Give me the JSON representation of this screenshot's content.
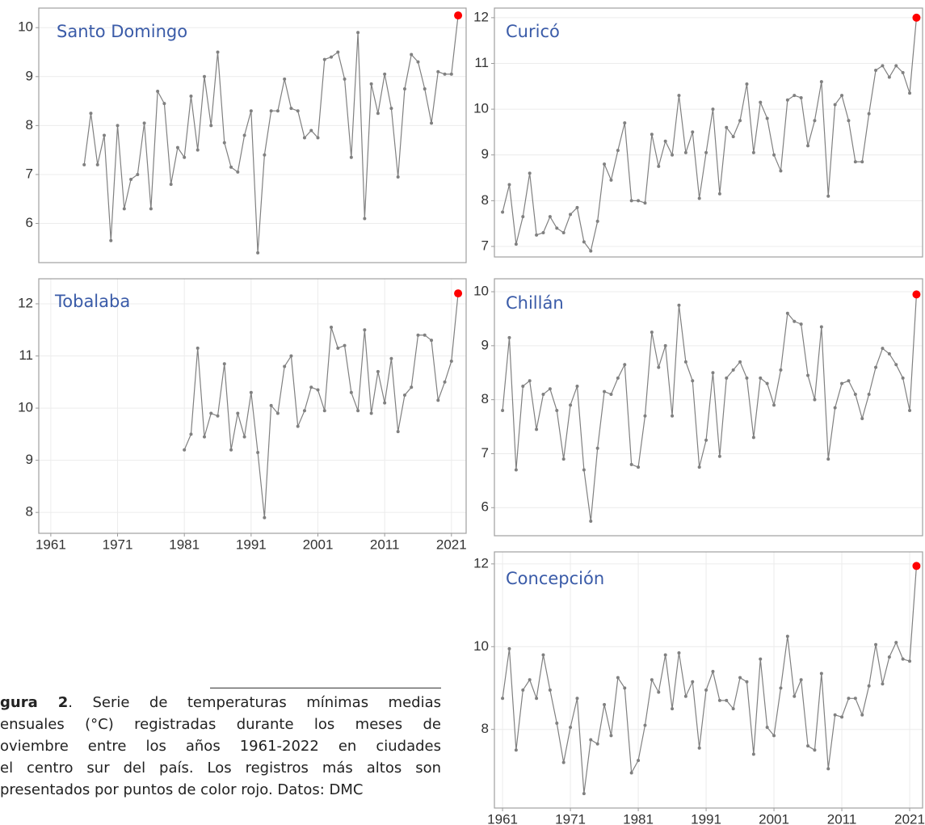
{
  "chart_data": [
    {
      "type": "line",
      "title": "Santo Domingo",
      "color": "#808080",
      "highlight_color": "#ff0000",
      "grid": true,
      "x": [
        1966,
        1967,
        1968,
        1969,
        1970,
        1971,
        1972,
        1973,
        1974,
        1975,
        1976,
        1977,
        1978,
        1979,
        1980,
        1981,
        1982,
        1983,
        1984,
        1985,
        1986,
        1987,
        1988,
        1989,
        1990,
        1991,
        1992,
        1993,
        1994,
        1995,
        1996,
        1997,
        1998,
        1999,
        2000,
        2001,
        2002,
        2003,
        2004,
        2005,
        2006,
        2007,
        2008,
        2009,
        2010,
        2011,
        2012,
        2013,
        2014,
        2015,
        2016,
        2017,
        2018,
        2019,
        2020,
        2021,
        2022
      ],
      "values": [
        7.2,
        8.25,
        7.2,
        7.8,
        5.65,
        8.0,
        6.3,
        6.9,
        7.0,
        8.05,
        6.3,
        8.7,
        8.45,
        6.8,
        7.55,
        7.35,
        8.6,
        7.5,
        9.0,
        8.0,
        9.5,
        7.65,
        7.15,
        7.05,
        7.8,
        8.3,
        5.4,
        7.4,
        8.3,
        8.3,
        8.95,
        8.35,
        8.3,
        7.75,
        7.9,
        7.75,
        9.35,
        9.4,
        9.5,
        8.95,
        7.35,
        9.9,
        6.1,
        8.85,
        8.25,
        9.05,
        8.35,
        6.95,
        8.75,
        9.45,
        9.3,
        8.75,
        8.05,
        9.1,
        9.05,
        9.05,
        10.25
      ],
      "xlim": [
        1959.2,
        2023.2
      ],
      "ylim": [
        5.2,
        10.4
      ],
      "yticks": [
        6,
        7,
        8,
        9,
        10
      ]
    },
    {
      "type": "line",
      "title": "Curicó",
      "color": "#808080",
      "highlight_color": "#ff0000",
      "grid": true,
      "x": [
        1961,
        1962,
        1963,
        1964,
        1965,
        1966,
        1967,
        1968,
        1969,
        1970,
        1971,
        1972,
        1973,
        1974,
        1975,
        1976,
        1977,
        1978,
        1979,
        1980,
        1981,
        1982,
        1983,
        1984,
        1985,
        1986,
        1987,
        1988,
        1989,
        1990,
        1991,
        1992,
        1993,
        1994,
        1995,
        1996,
        1997,
        1998,
        1999,
        2000,
        2001,
        2002,
        2003,
        2004,
        2005,
        2006,
        2007,
        2008,
        2009,
        2010,
        2011,
        2012,
        2013,
        2014,
        2015,
        2016,
        2017,
        2018,
        2019,
        2020,
        2021,
        2022
      ],
      "values": [
        7.75,
        8.35,
        7.05,
        7.65,
        8.6,
        7.25,
        7.3,
        7.65,
        7.4,
        7.3,
        7.7,
        7.85,
        7.1,
        6.9,
        7.55,
        8.8,
        8.45,
        9.1,
        9.7,
        8.0,
        8.0,
        7.95,
        9.45,
        8.75,
        9.3,
        9.0,
        10.3,
        9.05,
        9.5,
        8.05,
        9.05,
        10.0,
        8.15,
        9.6,
        9.4,
        9.75,
        10.55,
        9.05,
        10.15,
        9.8,
        9.0,
        8.65,
        10.2,
        10.3,
        10.25,
        9.2,
        9.75,
        10.6,
        8.1,
        10.1,
        10.3,
        9.75,
        8.85,
        8.85,
        9.9,
        10.85,
        10.95,
        10.7,
        10.95,
        10.8,
        10.35,
        12.0
      ],
      "xlim": [
        1959.8,
        2022.9
      ],
      "ylim": [
        6.77,
        12.21
      ],
      "yticks": [
        7,
        8,
        9,
        10,
        11,
        12
      ]
    },
    {
      "type": "line",
      "title": "Tobalaba",
      "color": "#808080",
      "highlight_color": "#ff0000",
      "grid": true,
      "x": [
        1981,
        1982,
        1983,
        1984,
        1985,
        1986,
        1987,
        1988,
        1989,
        1990,
        1991,
        1992,
        1993,
        1994,
        1995,
        1996,
        1997,
        1998,
        1999,
        2000,
        2001,
        2002,
        2003,
        2004,
        2005,
        2006,
        2007,
        2008,
        2009,
        2010,
        2011,
        2012,
        2013,
        2014,
        2015,
        2016,
        2017,
        2018,
        2019,
        2020,
        2021,
        2022
      ],
      "values": [
        9.2,
        9.5,
        11.15,
        9.45,
        9.9,
        9.85,
        10.85,
        9.2,
        9.9,
        9.45,
        10.3,
        9.15,
        7.9,
        10.05,
        9.9,
        10.8,
        11.0,
        9.65,
        9.95,
        10.4,
        10.35,
        9.95,
        11.55,
        11.15,
        11.2,
        10.3,
        9.95,
        11.5,
        9.9,
        10.7,
        10.1,
        10.95,
        9.55,
        10.25,
        10.4,
        11.4,
        11.4,
        11.3,
        10.15,
        10.5,
        10.9,
        12.2
      ],
      "xlim": [
        1959.2,
        2023.2
      ],
      "ylim": [
        7.6,
        12.48
      ],
      "yticks": [
        8,
        9,
        10,
        11,
        12
      ],
      "xticks": [
        1961,
        1971,
        1981,
        1991,
        2001,
        2011,
        2021
      ]
    },
    {
      "type": "line",
      "title": "Chillán",
      "color": "#808080",
      "highlight_color": "#ff0000",
      "grid": true,
      "x": [
        1961,
        1962,
        1963,
        1964,
        1965,
        1966,
        1967,
        1968,
        1969,
        1970,
        1971,
        1972,
        1973,
        1974,
        1975,
        1976,
        1977,
        1978,
        1979,
        1980,
        1981,
        1982,
        1983,
        1984,
        1985,
        1986,
        1987,
        1988,
        1989,
        1990,
        1991,
        1992,
        1993,
        1994,
        1995,
        1996,
        1997,
        1998,
        1999,
        2000,
        2001,
        2002,
        2003,
        2004,
        2005,
        2006,
        2007,
        2008,
        2009,
        2010,
        2011,
        2012,
        2013,
        2014,
        2015,
        2016,
        2017,
        2018,
        2019,
        2020,
        2021,
        2022
      ],
      "values": [
        7.8,
        9.15,
        6.7,
        8.25,
        8.35,
        7.45,
        8.1,
        8.2,
        7.8,
        6.9,
        7.9,
        8.25,
        6.7,
        5.75,
        7.1,
        8.15,
        8.1,
        8.4,
        8.65,
        6.8,
        6.75,
        7.7,
        9.25,
        8.6,
        9.0,
        7.7,
        9.75,
        8.7,
        8.35,
        6.75,
        7.25,
        8.5,
        6.95,
        8.4,
        8.55,
        8.7,
        8.4,
        7.3,
        8.4,
        8.3,
        7.9,
        8.55,
        9.6,
        9.45,
        9.4,
        8.45,
        8.0,
        9.35,
        6.9,
        7.85,
        8.3,
        8.35,
        8.1,
        7.65,
        8.1,
        8.6,
        8.95,
        8.85,
        8.65,
        8.4,
        7.8,
        9.95
      ],
      "xlim": [
        1959.8,
        2022.9
      ],
      "ylim": [
        5.48,
        10.24
      ],
      "yticks": [
        6,
        7,
        8,
        9,
        10
      ]
    },
    {
      "type": "line",
      "title": "Concepción",
      "color": "#808080",
      "highlight_color": "#ff0000",
      "grid": true,
      "x": [
        1961,
        1962,
        1963,
        1964,
        1965,
        1966,
        1967,
        1968,
        1969,
        1970,
        1971,
        1972,
        1973,
        1974,
        1975,
        1976,
        1977,
        1978,
        1979,
        1980,
        1981,
        1982,
        1983,
        1984,
        1985,
        1986,
        1987,
        1988,
        1989,
        1990,
        1991,
        1992,
        1993,
        1994,
        1995,
        1996,
        1997,
        1998,
        1999,
        2000,
        2001,
        2002,
        2003,
        2004,
        2005,
        2006,
        2007,
        2008,
        2009,
        2010,
        2011,
        2012,
        2013,
        2014,
        2015,
        2016,
        2017,
        2018,
        2019,
        2020,
        2021,
        2022
      ],
      "values": [
        8.75,
        9.95,
        7.5,
        8.95,
        9.2,
        8.75,
        9.8,
        8.95,
        8.15,
        7.2,
        8.05,
        8.75,
        6.45,
        7.75,
        7.65,
        8.6,
        7.85,
        9.25,
        9.0,
        6.95,
        7.25,
        8.1,
        9.2,
        8.9,
        9.8,
        8.5,
        9.85,
        8.8,
        9.15,
        7.55,
        8.95,
        9.4,
        8.7,
        8.7,
        8.5,
        9.25,
        9.15,
        7.4,
        9.7,
        8.05,
        7.85,
        9.0,
        10.25,
        8.8,
        9.2,
        7.6,
        7.5,
        9.35,
        7.05,
        8.35,
        8.3,
        8.75,
        8.75,
        8.35,
        9.05,
        10.05,
        9.1,
        9.75,
        10.1,
        9.7,
        9.65,
        11.95
      ],
      "xlim": [
        1959.8,
        2022.9
      ],
      "ylim": [
        6.1,
        12.29
      ],
      "yticks": [
        8,
        10,
        12
      ],
      "xticks": [
        1961,
        1971,
        1981,
        1991,
        2001,
        2011,
        2021
      ]
    }
  ],
  "caption": {
    "label": "gura 2",
    "lines": [
      ". Serie de temperaturas mínimas medias",
      "ensuales (°C) registradas durante los meses de",
      "oviembre entre los años 1961-2022 en ciudades",
      "el centro sur del país. Los registros más altos son",
      "presentados por puntos de color rojo. Datos: DMC"
    ]
  }
}
